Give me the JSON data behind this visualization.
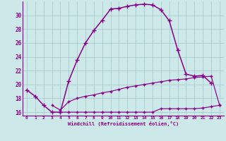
{
  "xlabel": "Windchill (Refroidissement éolien,°C)",
  "background_color": "#cce8e8",
  "grid_color": "#aacccc",
  "line_color": "#880088",
  "x_hours": [
    0,
    1,
    2,
    3,
    4,
    5,
    6,
    7,
    8,
    9,
    10,
    11,
    12,
    13,
    14,
    15,
    16,
    17,
    18,
    19,
    20,
    21,
    22,
    23
  ],
  "curve1": [
    19.2,
    18.3,
    17.0,
    16.0,
    16.0,
    20.5,
    23.5,
    26.0,
    27.8,
    29.3,
    30.9,
    31.0,
    31.3,
    31.5,
    31.6,
    31.5,
    30.8,
    29.2,
    25.0,
    21.5,
    21.2,
    21.3,
    20.2,
    null
  ],
  "curve2": [
    null,
    null,
    null,
    17.0,
    16.3,
    17.5,
    18.0,
    18.3,
    18.5,
    18.8,
    19.0,
    19.3,
    19.6,
    19.8,
    20.0,
    20.2,
    20.4,
    20.6,
    20.7,
    20.8,
    21.0,
    21.1,
    21.2,
    17.0
  ],
  "curve3": [
    null,
    null,
    null,
    null,
    16.0,
    16.0,
    16.0,
    16.0,
    16.0,
    16.0,
    16.0,
    16.0,
    16.0,
    16.0,
    16.0,
    16.0,
    16.5,
    16.5,
    16.5,
    16.5,
    16.5,
    16.6,
    16.8,
    17.0
  ],
  "ylim": [
    15.5,
    32.0
  ],
  "xlim": [
    -0.5,
    23.5
  ],
  "yticks": [
    16,
    18,
    20,
    22,
    24,
    26,
    28,
    30
  ],
  "xticks": [
    0,
    1,
    2,
    3,
    4,
    5,
    6,
    7,
    8,
    9,
    10,
    11,
    12,
    13,
    14,
    15,
    16,
    17,
    18,
    19,
    20,
    21,
    22,
    23
  ]
}
